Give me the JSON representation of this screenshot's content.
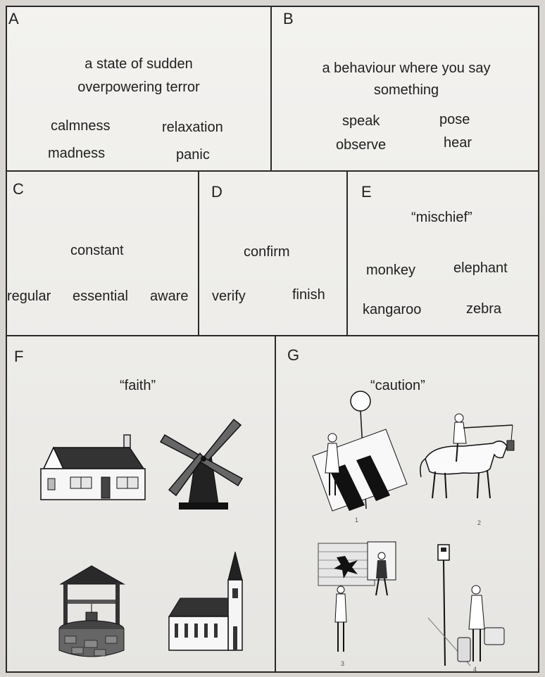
{
  "panels": {
    "a": {
      "letter": "A",
      "definition_line1": "a state of sudden",
      "definition_line2": "overpowering terror",
      "options": [
        "calmness",
        "relaxation",
        "madness",
        "panic"
      ]
    },
    "b": {
      "letter": "B",
      "definition_line1": "a behaviour where you say",
      "definition_line2": "something",
      "options": [
        "speak",
        "pose",
        "observe",
        "hear"
      ]
    },
    "c": {
      "letter": "C",
      "cue": "constant",
      "options": [
        "regular",
        "essential",
        "aware"
      ]
    },
    "d": {
      "letter": "D",
      "cue": "confirm",
      "options": [
        "verify",
        "finish"
      ]
    },
    "e": {
      "letter": "E",
      "cue": "“mischief”",
      "options": [
        "monkey",
        "elephant",
        "kangaroo",
        "zebra"
      ]
    },
    "f": {
      "letter": "F",
      "cue": "“faith”",
      "pictures": [
        "house-picture",
        "windmill-picture",
        "wishing-well-picture",
        "church-picture"
      ]
    },
    "g": {
      "letter": "G",
      "cue": "“caution”",
      "pictures": [
        "balloon-crosswalk-scene",
        "horse-rider-scene",
        "broken-window-scene",
        "bus-stop-scene"
      ],
      "figure_numbers": [
        "1",
        "2",
        "3",
        "4"
      ]
    }
  }
}
